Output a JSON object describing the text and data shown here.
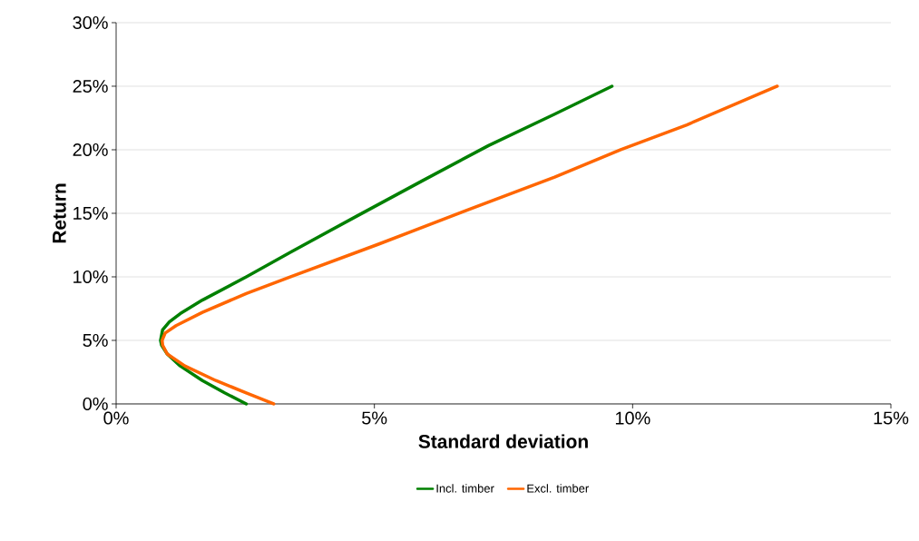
{
  "chart_data": {
    "type": "line",
    "xlabel": "Standard deviation",
    "ylabel": "Return",
    "xlim": [
      0,
      15
    ],
    "ylim": [
      0,
      30
    ],
    "xticks": [
      {
        "value": 0,
        "label": "0%"
      },
      {
        "value": 5,
        "label": "5%"
      },
      {
        "value": 10,
        "label": "10%"
      },
      {
        "value": 15,
        "label": "15%"
      }
    ],
    "yticks": [
      {
        "value": 0,
        "label": "0%"
      },
      {
        "value": 5,
        "label": "5%"
      },
      {
        "value": 10,
        "label": "10%"
      },
      {
        "value": 15,
        "label": "15%"
      },
      {
        "value": 20,
        "label": "20%"
      },
      {
        "value": 25,
        "label": "25%"
      },
      {
        "value": 30,
        "label": "30%"
      }
    ],
    "grid": "y",
    "legend": "bottom",
    "marker": "none",
    "line_style": "solid",
    "series": [
      {
        "name": "Incl. timber",
        "color": "#008000",
        "x": [
          2.52,
          2.1,
          1.67,
          1.24,
          0.99,
          0.88,
          0.86,
          0.9,
          1.03,
          1.24,
          1.67,
          2.52,
          3.38,
          4.65,
          5.93,
          7.21,
          8.49,
          9.6
        ],
        "values": [
          0,
          0.87,
          1.84,
          2.99,
          3.93,
          4.62,
          5.0,
          5.83,
          6.45,
          7.1,
          8.17,
          10.0,
          11.95,
          14.76,
          17.56,
          20.33,
          22.8,
          25
        ]
      },
      {
        "name": "Excl. timber",
        "color": "#ff6600",
        "x": [
          3.05,
          2.52,
          1.93,
          1.33,
          0.99,
          0.9,
          0.89,
          0.95,
          1.16,
          1.67,
          2.52,
          3.38,
          5.08,
          6.79,
          8.49,
          9.77,
          11.05,
          12.8
        ],
        "values": [
          0,
          0.87,
          1.84,
          2.99,
          3.93,
          4.62,
          5.0,
          5.58,
          6.16,
          7.2,
          8.69,
          10.0,
          12.57,
          15.24,
          17.84,
          20.0,
          21.96,
          25
        ]
      }
    ]
  }
}
